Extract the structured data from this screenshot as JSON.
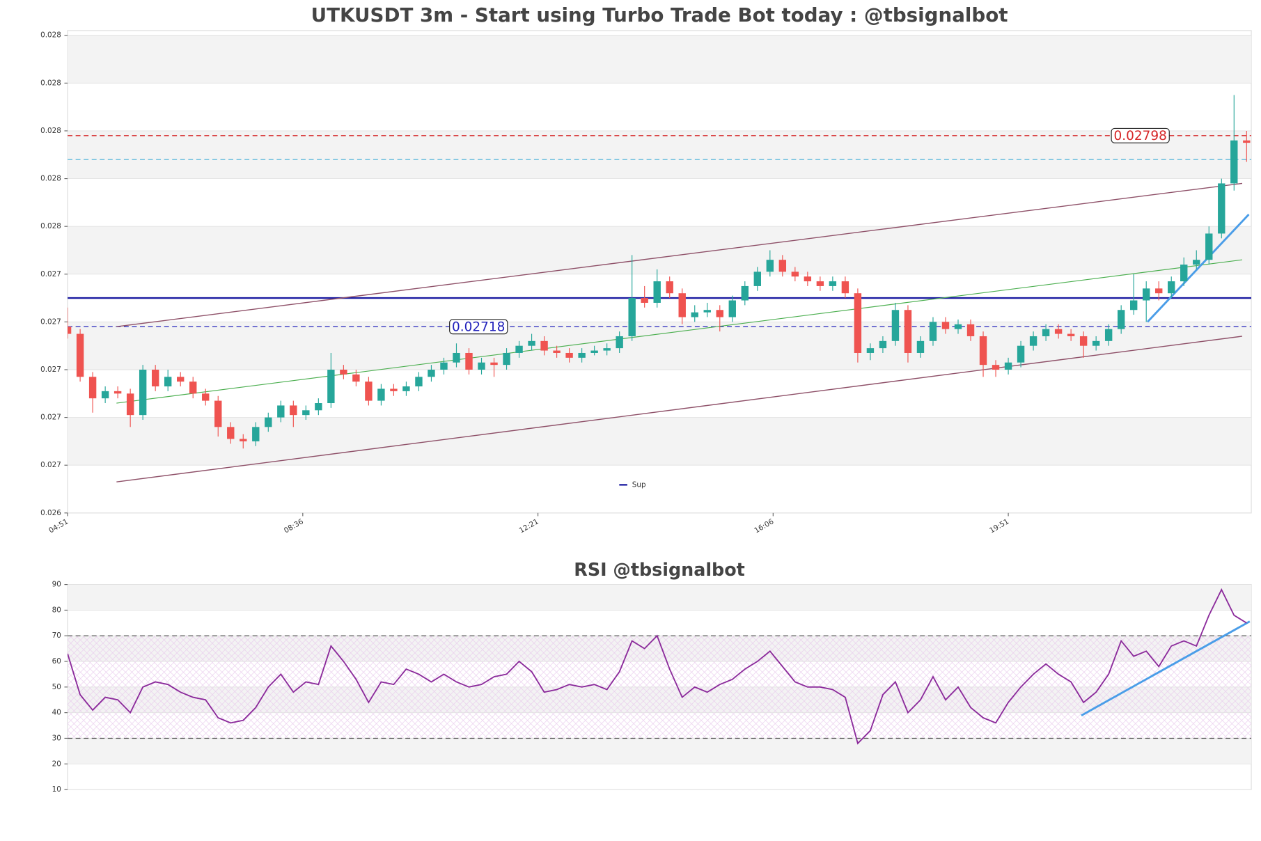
{
  "chart_data": [
    {
      "type": "candlestick",
      "title": "UTKUSDT 3m - Start using Turbo Trade Bot today : @tbsignalbot",
      "x": [
        0,
        4,
        8,
        12,
        16,
        20,
        24,
        28,
        32,
        36,
        40,
        44,
        48,
        52,
        56,
        60,
        64,
        68,
        72,
        76,
        80,
        84,
        88,
        92,
        96,
        100,
        104,
        108,
        112,
        116,
        120,
        124,
        128,
        132,
        136,
        140,
        144,
        148,
        152,
        156,
        160,
        164,
        168,
        172,
        176,
        180,
        184,
        188,
        192,
        196,
        200,
        204,
        208,
        212,
        216,
        220,
        224,
        228,
        232,
        236,
        240,
        244,
        248,
        252,
        256,
        260,
        264,
        268,
        272,
        276,
        280,
        284,
        288,
        292,
        296,
        300,
        304,
        308,
        312,
        316,
        320,
        324,
        328,
        332,
        336,
        340,
        344,
        348,
        352,
        356,
        360,
        364,
        368,
        372,
        376
      ],
      "open": [
        0.02718,
        0.02715,
        0.02697,
        0.02688,
        0.02691,
        0.0269,
        0.02681,
        0.027,
        0.02693,
        0.02697,
        0.02695,
        0.0269,
        0.02687,
        0.02676,
        0.02671,
        0.0267,
        0.02676,
        0.0268,
        0.02685,
        0.02681,
        0.02683,
        0.02686,
        0.027,
        0.02698,
        0.02695,
        0.02687,
        0.02692,
        0.02691,
        0.02693,
        0.02697,
        0.027,
        0.02703,
        0.02707,
        0.027,
        0.02703,
        0.02702,
        0.02707,
        0.0271,
        0.02712,
        0.02708,
        0.02707,
        0.02705,
        0.02707,
        0.02708,
        0.02709,
        0.02714,
        0.0273,
        0.02728,
        0.02737,
        0.02732,
        0.02722,
        0.02724,
        0.02725,
        0.02722,
        0.02729,
        0.02735,
        0.02741,
        0.02746,
        0.02741,
        0.02739,
        0.02737,
        0.02735,
        0.02737,
        0.02732,
        0.02707,
        0.02709,
        0.02712,
        0.02725,
        0.02707,
        0.02712,
        0.0272,
        0.02717,
        0.02719,
        0.02714,
        0.02702,
        0.027,
        0.02703,
        0.0271,
        0.02714,
        0.02717,
        0.02715,
        0.02714,
        0.0271,
        0.02712,
        0.02717,
        0.02725,
        0.02729,
        0.02734,
        0.02732,
        0.02737,
        0.02744,
        0.02746,
        0.02757,
        0.02778,
        0.02796
      ],
      "high": [
        0.02726,
        0.02717,
        0.02699,
        0.02693,
        0.02693,
        0.02692,
        0.02702,
        0.02702,
        0.027,
        0.02699,
        0.02697,
        0.02692,
        0.02689,
        0.02678,
        0.02673,
        0.02678,
        0.02682,
        0.02687,
        0.02687,
        0.02685,
        0.02688,
        0.02707,
        0.02702,
        0.027,
        0.02697,
        0.02694,
        0.02694,
        0.02695,
        0.02699,
        0.02702,
        0.02705,
        0.02711,
        0.02709,
        0.02705,
        0.02705,
        0.02709,
        0.02712,
        0.02715,
        0.02714,
        0.0271,
        0.02709,
        0.02709,
        0.0271,
        0.02711,
        0.02716,
        0.02748,
        0.02735,
        0.02742,
        0.02739,
        0.02734,
        0.02727,
        0.02728,
        0.02727,
        0.02731,
        0.02737,
        0.02743,
        0.0275,
        0.02748,
        0.02743,
        0.02741,
        0.02739,
        0.02739,
        0.02739,
        0.02734,
        0.02711,
        0.02714,
        0.02728,
        0.02727,
        0.02714,
        0.02722,
        0.02722,
        0.02721,
        0.02721,
        0.02716,
        0.02704,
        0.02705,
        0.02712,
        0.02716,
        0.02719,
        0.02719,
        0.02717,
        0.02716,
        0.02714,
        0.02719,
        0.02727,
        0.0274,
        0.02737,
        0.02737,
        0.02739,
        0.02747,
        0.0275,
        0.0276,
        0.0278,
        0.02815,
        0.028
      ],
      "low": [
        0.02713,
        0.02695,
        0.02682,
        0.02686,
        0.02688,
        0.02676,
        0.02679,
        0.02691,
        0.02691,
        0.02693,
        0.02688,
        0.02685,
        0.02672,
        0.02669,
        0.02667,
        0.02668,
        0.02674,
        0.02678,
        0.02676,
        0.02679,
        0.02681,
        0.02684,
        0.02696,
        0.02693,
        0.02685,
        0.02685,
        0.02689,
        0.02689,
        0.02691,
        0.02695,
        0.02698,
        0.02701,
        0.02698,
        0.02698,
        0.02697,
        0.027,
        0.02705,
        0.02708,
        0.02706,
        0.02705,
        0.02703,
        0.02703,
        0.02706,
        0.02706,
        0.02707,
        0.02712,
        0.02726,
        0.02726,
        0.0273,
        0.02719,
        0.0272,
        0.02722,
        0.02716,
        0.0272,
        0.02727,
        0.02733,
        0.02739,
        0.02739,
        0.02737,
        0.02735,
        0.02733,
        0.02733,
        0.0273,
        0.02703,
        0.02704,
        0.02707,
        0.0271,
        0.02703,
        0.02705,
        0.0271,
        0.02715,
        0.02715,
        0.02712,
        0.02697,
        0.02697,
        0.02698,
        0.02701,
        0.02708,
        0.02712,
        0.02713,
        0.02712,
        0.02705,
        0.02708,
        0.0271,
        0.02715,
        0.02723,
        0.0272,
        0.02729,
        0.0273,
        0.02735,
        0.02742,
        0.02744,
        0.02755,
        0.02775,
        0.02787
      ],
      "close": [
        0.02715,
        0.02697,
        0.02688,
        0.02691,
        0.0269,
        0.02681,
        0.027,
        0.02693,
        0.02697,
        0.02695,
        0.0269,
        0.02687,
        0.02676,
        0.02671,
        0.0267,
        0.02676,
        0.0268,
        0.02685,
        0.02681,
        0.02683,
        0.02686,
        0.027,
        0.02698,
        0.02695,
        0.02687,
        0.02692,
        0.02691,
        0.02693,
        0.02697,
        0.027,
        0.02703,
        0.02707,
        0.027,
        0.02703,
        0.02702,
        0.02707,
        0.0271,
        0.02712,
        0.02708,
        0.02707,
        0.02705,
        0.02707,
        0.02708,
        0.02709,
        0.02714,
        0.0273,
        0.02728,
        0.02737,
        0.02732,
        0.02722,
        0.02724,
        0.02725,
        0.02722,
        0.02729,
        0.02735,
        0.02741,
        0.02746,
        0.02741,
        0.02739,
        0.02737,
        0.02735,
        0.02737,
        0.02732,
        0.02707,
        0.02709,
        0.02712,
        0.02725,
        0.02707,
        0.02712,
        0.0272,
        0.02717,
        0.02719,
        0.02714,
        0.02702,
        0.027,
        0.02703,
        0.0271,
        0.02714,
        0.02717,
        0.02715,
        0.02714,
        0.0271,
        0.02712,
        0.02717,
        0.02725,
        0.02729,
        0.02734,
        0.02732,
        0.02737,
        0.02744,
        0.02746,
        0.02757,
        0.02778,
        0.02796,
        0.02795
      ],
      "up_color": "#26a69a",
      "down_color": "#ef5350",
      "xlim": [
        0,
        377.5
      ],
      "ylim": [
        0.0264,
        0.02842
      ],
      "xticks": [
        {
          "value": 0,
          "label": "04:51"
        },
        {
          "value": 75,
          "label": "08:36"
        },
        {
          "value": 150,
          "label": "12:21"
        },
        {
          "value": 225,
          "label": "16:06"
        },
        {
          "value": 300,
          "label": "19:51"
        }
      ],
      "yticks": [
        {
          "value": 0.0264,
          "label": "0.026"
        },
        {
          "value": 0.0266,
          "label": "0.027"
        },
        {
          "value": 0.0268,
          "label": "0.027"
        },
        {
          "value": 0.027,
          "label": "0.027"
        },
        {
          "value": 0.0272,
          "label": "0.027"
        },
        {
          "value": 0.0274,
          "label": "0.027"
        },
        {
          "value": 0.0276,
          "label": "0.028"
        },
        {
          "value": 0.0278,
          "label": "0.028"
        },
        {
          "value": 0.028,
          "label": "0.028"
        },
        {
          "value": 0.0282,
          "label": "0.028"
        },
        {
          "value": 0.0284,
          "label": "0.028"
        }
      ],
      "hlines": [
        {
          "value": 0.02798,
          "color": "#d62728",
          "style": "dashed",
          "labeled": true
        },
        {
          "value": 0.02788,
          "color": "#4fb3d9",
          "style": "dashed"
        },
        {
          "value": 0.0273,
          "color": "#1a1aa0",
          "style": "solid",
          "name": "Sup"
        },
        {
          "value": 0.02718,
          "color": "#2222bb",
          "style": "dashed",
          "labeled": true
        }
      ],
      "trendlines": [
        {
          "x": [
            15.6,
            374.6
          ],
          "y": [
            0.02718,
            0.02778
          ],
          "color": "#8e5068",
          "width": 1.2
        },
        {
          "x": [
            15.6,
            374.6
          ],
          "y": [
            0.02653,
            0.02714
          ],
          "color": "#8e5068",
          "width": 1.2
        },
        {
          "x": [
            15.6,
            374.6
          ],
          "y": [
            0.02686,
            0.02746
          ],
          "color": "#4caf50",
          "width": 1
        },
        {
          "x": [
            344.4,
            376.7
          ],
          "y": [
            0.0272,
            0.02765
          ],
          "color": "#4a9de8",
          "width": 2.5
        }
      ],
      "legend": "lower center",
      "bands": true
    },
    {
      "type": "line",
      "title": "RSI @tbsignalbot",
      "x": [
        0,
        4,
        8,
        12,
        16,
        20,
        24,
        28,
        32,
        36,
        40,
        44,
        48,
        52,
        56,
        60,
        64,
        68,
        72,
        76,
        80,
        84,
        88,
        92,
        96,
        100,
        104,
        108,
        112,
        116,
        120,
        124,
        128,
        132,
        136,
        140,
        144,
        148,
        152,
        156,
        160,
        164,
        168,
        172,
        176,
        180,
        184,
        188,
        192,
        196,
        200,
        204,
        208,
        212,
        216,
        220,
        224,
        228,
        232,
        236,
        240,
        244,
        248,
        252,
        256,
        260,
        264,
        268,
        272,
        276,
        280,
        284,
        288,
        292,
        296,
        300,
        304,
        308,
        312,
        316,
        320,
        324,
        328,
        332,
        336,
        340,
        344,
        348,
        352,
        356,
        360,
        364,
        368,
        372,
        376
      ],
      "values": [
        63,
        47,
        41,
        46,
        45,
        40,
        50,
        52,
        51,
        48,
        46,
        45,
        38,
        36,
        37,
        42,
        50,
        55,
        48,
        52,
        51,
        66,
        60,
        53,
        44,
        52,
        51,
        57,
        55,
        52,
        55,
        52,
        50,
        51,
        54,
        55,
        60,
        56,
        48,
        49,
        51,
        50,
        51,
        49,
        56,
        68,
        65,
        70,
        57,
        46,
        50,
        48,
        51,
        53,
        57,
        60,
        64,
        58,
        52,
        50,
        50,
        49,
        46,
        28,
        33,
        47,
        52,
        40,
        45,
        54,
        45,
        50,
        42,
        38,
        36,
        44,
        50,
        55,
        59,
        55,
        52,
        44,
        48,
        55,
        68,
        62,
        64,
        58,
        66,
        68,
        66,
        78,
        88,
        78,
        75
      ],
      "color": "#8b2a9b",
      "xlim": [
        0,
        377.5
      ],
      "ylim": [
        10,
        90
      ],
      "yticks": [
        10,
        20,
        30,
        40,
        50,
        60,
        70,
        80,
        90
      ],
      "hlines": [
        {
          "value": 70,
          "color": "#555555",
          "style": "dashed"
        },
        {
          "value": 30,
          "color": "#555555",
          "style": "dashed"
        }
      ],
      "band": [
        30,
        70
      ],
      "trendlines": [
        {
          "x": [
            323.3,
            377
          ],
          "y": [
            38.9,
            75.6
          ],
          "color": "#4a9de8",
          "width": 2.5
        }
      ],
      "bands": true
    }
  ]
}
